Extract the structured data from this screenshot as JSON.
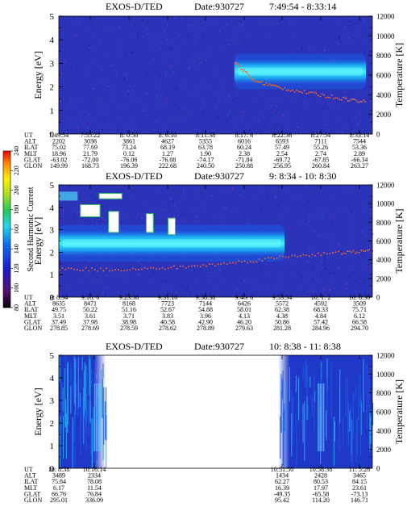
{
  "colorbar": {
    "label": "Second Harmonic Current",
    "ticks": [
      "80",
      "100",
      "120",
      "140",
      "160",
      "180",
      "200",
      "220",
      "240"
    ]
  },
  "chart_data": [
    {
      "type": "heatmap",
      "title": "EXOS-D/TED",
      "date_label": "Date:930727",
      "time_range": "7:49:54 - 8:33:14",
      "xlabel": "",
      "ylabel": "Energy [eV]",
      "ylabel_right": "Temperature [K]",
      "ylim": [
        0,
        5
      ],
      "ylim_right": [
        0,
        12000
      ],
      "y_ticks": [
        "0",
        "1",
        "2",
        "3",
        "4",
        "5"
      ],
      "y2_ticks": [
        "0",
        "2000",
        "4000",
        "6000",
        "8000",
        "10000",
        "12000"
      ],
      "bands": [
        {
          "t_start": 0.56,
          "t_end": 0.98,
          "e_low": 2.1,
          "e_high": 3.2,
          "level": "high"
        }
      ],
      "temperature_trace": [
        {
          "t": 0.56,
          "T": 7400
        },
        {
          "t": 0.62,
          "T": 5500
        },
        {
          "t": 0.7,
          "T": 4800
        },
        {
          "t": 0.8,
          "T": 4200
        },
        {
          "t": 0.9,
          "T": 3700
        },
        {
          "t": 0.98,
          "T": 3300
        }
      ],
      "orbit": {
        "row_labels": [
          "UT",
          "ALT",
          "ILAT",
          "MLT",
          "GLAT",
          "GLON"
        ],
        "columns": [
          [
            "7:49:54",
            "2202",
            "75.02",
            "18.96",
            "-63.02",
            "149.99"
          ],
          [
            "7:55:22",
            "3036",
            "77.69",
            "21.79",
            "-72.00",
            "168.73"
          ],
          [
            "8: 0:50",
            "3861",
            "73.24",
            "0.12",
            "-76.06",
            "196.39"
          ],
          [
            "8: 6:10",
            "4627",
            "68.19",
            "1.27",
            "-76.08",
            "222.68"
          ],
          [
            "8:11:38",
            "5355",
            "63.78",
            "1.90",
            "-74.17",
            "240.50"
          ],
          [
            "8:17: 6",
            "6016",
            "60.24",
            "2.38",
            "-71.84",
            "250.88"
          ],
          [
            "8:22:36",
            "6593",
            "57.49",
            "2.54",
            "-69.72",
            "256.95"
          ],
          [
            "8:27:54",
            "7111",
            "55.26",
            "2.74",
            "-67.85",
            "260.84"
          ],
          [
            "8:33:14",
            "7544",
            "53.36",
            "2.89",
            "-66.34",
            "263.27"
          ]
        ]
      }
    },
    {
      "type": "heatmap",
      "title": "EXOS-D/TED",
      "date_label": "Date:930727",
      "time_range": "9: 8:34 - 10: 8:30",
      "xlabel": "",
      "ylabel": "Energy [eV]",
      "ylabel_right": "Temperature [K]",
      "ylim": [
        0,
        5
      ],
      "ylim_right": [
        0,
        12000
      ],
      "y_ticks": [
        "0",
        "1",
        "2",
        "3",
        "4",
        "5"
      ],
      "y2_ticks": [
        "0",
        "2000",
        "4000",
        "6000",
        "8000",
        "10000",
        "12000"
      ],
      "bands": [
        {
          "t_start": 0.0,
          "t_end": 0.72,
          "e_low": 1.8,
          "e_high": 3.0,
          "level": "high"
        }
      ],
      "temperature_trace": [
        {
          "t": 0.0,
          "T": 3100
        },
        {
          "t": 0.15,
          "T": 3000
        },
        {
          "t": 0.3,
          "T": 3100
        },
        {
          "t": 0.45,
          "T": 3400
        },
        {
          "t": 0.6,
          "T": 3900
        },
        {
          "t": 0.75,
          "T": 4500
        },
        {
          "t": 0.9,
          "T": 4800
        },
        {
          "t": 1.0,
          "T": 5000
        }
      ],
      "orbit": {
        "row_labels": [
          "UT",
          "ALT",
          "ILAT",
          "MLT",
          "GLAT",
          "GLON"
        ],
        "columns": [
          [
            "9: 8:34",
            "8635",
            "49.75",
            "3.51",
            "37.49",
            "278.85"
          ],
          [
            "9:16: 6",
            "8471",
            "50.22",
            "3.61",
            "37.98",
            "278.69"
          ],
          [
            "9:23:38",
            "8168",
            "51.16",
            "3.71",
            "38.98",
            "278.59"
          ],
          [
            "9:31:10",
            "7723",
            "52.67",
            "3.83",
            "40.58",
            "278.62"
          ],
          [
            "9:38:38",
            "7144",
            "54.88",
            "3.96",
            "42.90",
            "278.89"
          ],
          [
            "9:46: 6",
            "6426",
            "58.01",
            "4.13",
            "46.20",
            "279.63"
          ],
          [
            "9:53:34",
            "5572",
            "62.38",
            "4.38",
            "50.86",
            "281.28"
          ],
          [
            "10: 1: 2",
            "4592",
            "68.33",
            "4.84",
            "57.42",
            "284.96"
          ],
          [
            "10: 8:30",
            "3509",
            "75.71",
            "6.12",
            "66.58",
            "294.70"
          ]
        ]
      }
    },
    {
      "type": "heatmap",
      "title": "EXOS-D/TED",
      "date_label": "Date:930727",
      "time_range": "10: 8:38 - 11: 8:38",
      "xlabel": "",
      "ylabel": "Energy [eV]",
      "ylabel_right": "Temperature [K]",
      "ylim": [
        0,
        5
      ],
      "ylim_right": [
        0,
        12000
      ],
      "y_ticks": [
        "0",
        "1",
        "2",
        "3",
        "4",
        "5"
      ],
      "y2_ticks": [
        "0",
        "2000",
        "4000",
        "6000",
        "8000",
        "10000",
        "12000"
      ],
      "data_segments": [
        {
          "t_start": 0.0,
          "t_end": 0.15
        },
        {
          "t_start": 0.7,
          "t_end": 1.0
        }
      ],
      "orbit": {
        "row_labels": [
          "UT",
          "ALT",
          "ILAT",
          "MLT",
          "GLAT",
          "GLON"
        ],
        "columns": [
          [
            "10: 8:38",
            "3489",
            "75.84",
            "6.17",
            "66.76",
            "295.01"
          ],
          [
            "10:16:14",
            "2334",
            "78.08",
            "11.54",
            "76.84",
            "336.09"
          ],
          [
            "10:51:50",
            "1434",
            "62.27",
            "16.39",
            "-49.35",
            "95.42"
          ],
          [
            "10:58:38",
            "2428",
            "80.53",
            "17.97",
            "-65.58",
            "114.20"
          ],
          [
            "11: 5:26",
            "3465",
            "84.15",
            "23.61",
            "-73.13",
            "146.71"
          ]
        ]
      }
    }
  ]
}
